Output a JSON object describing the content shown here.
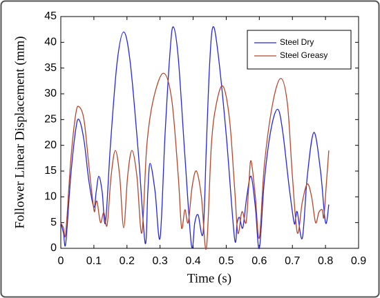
{
  "chart_data": {
    "type": "line",
    "x_label": "Time (s)",
    "y_label": "Follower Linear Displacement (mm)",
    "xlim": [
      0,
      0.9
    ],
    "xticks": [
      0,
      0.1,
      0.2,
      0.3,
      0.4,
      0.5,
      0.6,
      0.7,
      0.8,
      0.9
    ],
    "ylim": [
      0,
      45
    ],
    "yticks": [
      0,
      5,
      10,
      15,
      20,
      25,
      30,
      35,
      40,
      45
    ],
    "grid": false,
    "legend": "upper right",
    "series": [
      {
        "name": "Steel Dry",
        "color": "#2525e0",
        "x": [
          0,
          0.008,
          0.015,
          0.03,
          0.045,
          0.055,
          0.07,
          0.085,
          0.1,
          0.107,
          0.115,
          0.125,
          0.135,
          0.15,
          0.17,
          0.19,
          0.21,
          0.235,
          0.255,
          0.263,
          0.27,
          0.285,
          0.3,
          0.315,
          0.33,
          0.34,
          0.355,
          0.375,
          0.395,
          0.405,
          0.415,
          0.43,
          0.44,
          0.45,
          0.46,
          0.475,
          0.5,
          0.525,
          0.533,
          0.54,
          0.55,
          0.562,
          0.575,
          0.588,
          0.6,
          0.615,
          0.635,
          0.655,
          0.67,
          0.69,
          0.705,
          0.71,
          0.715,
          0.73,
          0.745,
          0.765,
          0.785,
          0.8,
          0.81
        ],
        "values": [
          5,
          3,
          1,
          14,
          23,
          25,
          21,
          13,
          8,
          11,
          14,
          11,
          5,
          20,
          36,
          42,
          36,
          18,
          1,
          11,
          16.5,
          11,
          2,
          22,
          38,
          43,
          37,
          18,
          0.5,
          5,
          6.5,
          3,
          20,
          36,
          43,
          38,
          22,
          2,
          5,
          6,
          4,
          10,
          14,
          8,
          0,
          13,
          23,
          27,
          23,
          12,
          5,
          6,
          7,
          2,
          14,
          22.5,
          15,
          5,
          8.5
        ]
      },
      {
        "name": "Steel Greasy",
        "color": "#b5462a",
        "x": [
          0,
          0.008,
          0.015,
          0.03,
          0.045,
          0.055,
          0.07,
          0.085,
          0.1,
          0.105,
          0.11,
          0.12,
          0.13,
          0.14,
          0.152,
          0.165,
          0.178,
          0.19,
          0.202,
          0.215,
          0.23,
          0.245,
          0.26,
          0.28,
          0.31,
          0.335,
          0.355,
          0.365,
          0.375,
          0.385,
          0.397,
          0.41,
          0.425,
          0.44,
          0.455,
          0.47,
          0.49,
          0.51,
          0.525,
          0.535,
          0.545,
          0.55,
          0.56,
          0.568,
          0.575,
          0.588,
          0.6,
          0.615,
          0.64,
          0.665,
          0.685,
          0.7,
          0.715,
          0.73,
          0.745,
          0.758,
          0.77,
          0.78,
          0.79,
          0.795,
          0.802,
          0.81
        ],
        "values": [
          5,
          4,
          3,
          17,
          26,
          27.5,
          25,
          16,
          7.5,
          8.5,
          9,
          5,
          7,
          4.5,
          14,
          19,
          14,
          4,
          14,
          19,
          14,
          3,
          20,
          29,
          34,
          29,
          14,
          4,
          7.5,
          5,
          12,
          15,
          10,
          0,
          20,
          28,
          31.5,
          25,
          12,
          3,
          6.5,
          7,
          5,
          12,
          17,
          10,
          2,
          16,
          28,
          33,
          28,
          14,
          3,
          9,
          12.5,
          10,
          5,
          7,
          7.5,
          6,
          12,
          19
        ]
      }
    ]
  }
}
